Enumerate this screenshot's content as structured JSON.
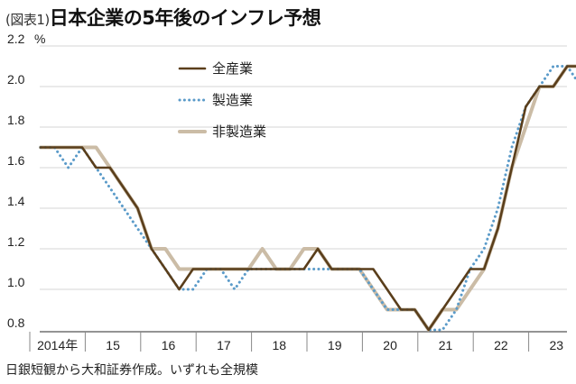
{
  "header": {
    "prefix": "(図表1)",
    "title": "日本企業の5年後のインフレ予想"
  },
  "footer": {
    "source": "日銀短観から大和証券作成。いずれも全規模"
  },
  "chart_data": {
    "type": "line",
    "title": "日本企業の5年後のインフレ予想",
    "ylabel": "%",
    "ylim": [
      0.8,
      2.2
    ],
    "yticks": [
      0.8,
      1.0,
      1.2,
      1.4,
      1.6,
      1.8,
      2.0,
      2.2
    ],
    "ytick_labels": [
      "0.8",
      "1.0",
      "1.2",
      "1.4",
      "1.6",
      "1.8",
      "2.0",
      "2.2"
    ],
    "x_labels": [
      "2014年",
      "15",
      "16",
      "17",
      "18",
      "19",
      "20",
      "21",
      "22",
      "23"
    ],
    "x_start": 2014.0,
    "x_step": 0.25,
    "legend_position": "top-center",
    "series": [
      {
        "name": "全産業",
        "color": "#5a3e1b",
        "style": "solid",
        "values": [
          1.7,
          1.7,
          1.7,
          1.7,
          1.6,
          1.6,
          1.5,
          1.4,
          1.2,
          1.1,
          1.0,
          1.1,
          1.1,
          1.1,
          1.1,
          1.1,
          1.1,
          1.1,
          1.1,
          1.1,
          1.2,
          1.1,
          1.1,
          1.1,
          1.1,
          1.0,
          0.9,
          0.9,
          0.8,
          0.9,
          1.0,
          1.1,
          1.1,
          1.3,
          1.6,
          1.9,
          2.0,
          2.0,
          2.1,
          2.1,
          2.1
        ]
      },
      {
        "name": "製造業",
        "color": "#5b9bc9",
        "style": "dotted",
        "values": [
          1.7,
          1.7,
          1.6,
          1.7,
          1.6,
          1.5,
          1.4,
          1.3,
          1.2,
          1.1,
          1.0,
          1.0,
          1.1,
          1.1,
          1.0,
          1.1,
          1.1,
          1.1,
          1.1,
          1.1,
          1.1,
          1.1,
          1.1,
          1.1,
          1.0,
          0.9,
          0.9,
          0.9,
          0.8,
          0.8,
          0.9,
          1.1,
          1.2,
          1.4,
          1.7,
          1.9,
          2.0,
          2.1,
          2.1,
          2.0,
          2.1
        ]
      },
      {
        "name": "非製造業",
        "color": "#cbbca6",
        "style": "solid",
        "values": [
          1.7,
          1.7,
          1.7,
          1.7,
          1.7,
          1.6,
          1.5,
          1.4,
          1.2,
          1.2,
          1.1,
          1.1,
          1.1,
          1.1,
          1.1,
          1.1,
          1.2,
          1.1,
          1.1,
          1.2,
          1.2,
          1.1,
          1.1,
          1.1,
          1.0,
          0.9,
          0.9,
          0.9,
          0.8,
          0.9,
          0.9,
          1.0,
          1.1,
          1.3,
          1.6,
          1.8,
          2.0,
          2.0,
          2.1,
          2.1,
          2.1
        ]
      }
    ]
  }
}
